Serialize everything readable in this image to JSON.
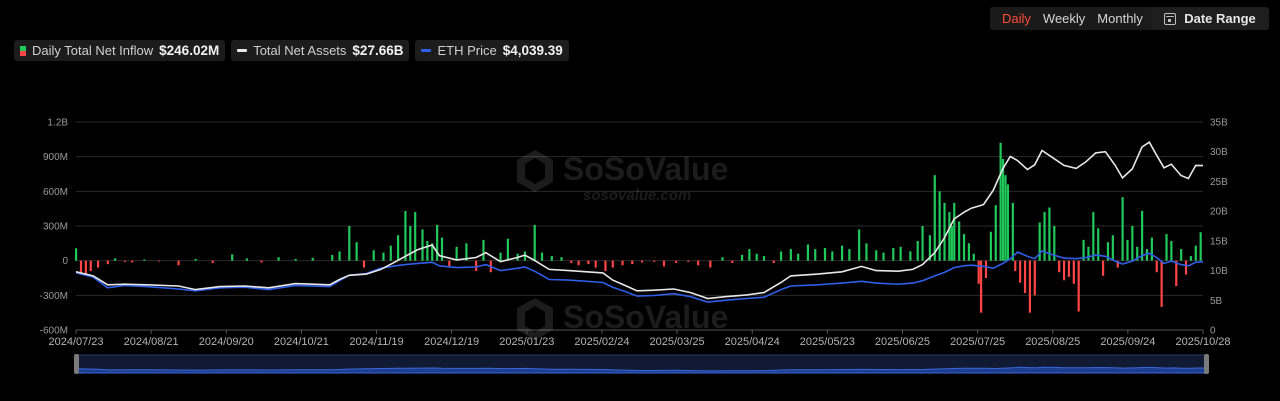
{
  "controls": {
    "periods": [
      {
        "label": "Daily",
        "active": true
      },
      {
        "label": "Weekly",
        "active": false
      },
      {
        "label": "Monthly",
        "active": false
      }
    ],
    "date_range_label": "Date Range"
  },
  "legend": {
    "inflow_label": "Daily Total Net Inflow",
    "inflow_value": "$246.02M",
    "assets_label": "Total Net Assets",
    "assets_value": "$27.66B",
    "price_label": "ETH Price",
    "price_value": "$4,039.39"
  },
  "watermark": {
    "name": "SoSoValue",
    "url": "sosovalue.com"
  },
  "colors": {
    "positive": "#21c85a",
    "negative": "#ff4545",
    "assets": "#e8e8e8",
    "price": "#2f5fe8"
  },
  "chart_data": {
    "type": "bar+line",
    "x_range": [
      "2024-07-23",
      "2025/10/28"
    ],
    "x_ticks": [
      "2024/07/23",
      "2024/08/21",
      "2024/09/20",
      "2024/10/21",
      "2024/11/19",
      "2024/12/19",
      "2025/01/23",
      "2025/02/24",
      "2025/03/25",
      "2025/04/24",
      "2025/05/23",
      "2025/06/25",
      "2025/07/25",
      "2025/08/25",
      "2025/09/24",
      "2025/10/28"
    ],
    "y_left": {
      "name": "Daily Total Net Inflow",
      "ticks": [
        "1.2B",
        "900M",
        "600M",
        "300M",
        "0",
        "-300M",
        "-600M"
      ],
      "range": [
        -600,
        1200
      ],
      "unit": "M USD"
    },
    "y_right": {
      "name": "Total Net Assets",
      "ticks": [
        "35B",
        "30B",
        "25B",
        "20B",
        "15B",
        "10B",
        "5B",
        "0"
      ],
      "range": [
        0,
        35
      ],
      "unit": "B USD"
    },
    "inflow_bars": [
      [
        "2024-07-23",
        107
      ],
      [
        "2024-07-25",
        -100
      ],
      [
        "2024-07-27",
        -120
      ],
      [
        "2024-07-29",
        -90
      ],
      [
        "2024-08-01",
        -60
      ],
      [
        "2024-08-05",
        -30
      ],
      [
        "2024-08-08",
        20
      ],
      [
        "2024-08-12",
        -10
      ],
      [
        "2024-08-15",
        -15
      ],
      [
        "2024-08-20",
        10
      ],
      [
        "2024-08-26",
        -5
      ],
      [
        "2024-09-03",
        -40
      ],
      [
        "2024-09-10",
        15
      ],
      [
        "2024-09-17",
        -20
      ],
      [
        "2024-09-25",
        55
      ],
      [
        "2024-10-01",
        20
      ],
      [
        "2024-10-07",
        -15
      ],
      [
        "2024-10-14",
        30
      ],
      [
        "2024-10-21",
        15
      ],
      [
        "2024-10-28",
        25
      ],
      [
        "2024-11-05",
        50
      ],
      [
        "2024-11-08",
        80
      ],
      [
        "2024-11-12",
        300
      ],
      [
        "2024-11-15",
        160
      ],
      [
        "2024-11-18",
        -60
      ],
      [
        "2024-11-22",
        90
      ],
      [
        "2024-11-26",
        70
      ],
      [
        "2024-11-29",
        130
      ],
      [
        "2024-12-02",
        220
      ],
      [
        "2024-12-05",
        430
      ],
      [
        "2024-12-07",
        300
      ],
      [
        "2024-12-09",
        420
      ],
      [
        "2024-12-12",
        270
      ],
      [
        "2024-12-14",
        170
      ],
      [
        "2024-12-16",
        150
      ],
      [
        "2024-12-18",
        310
      ],
      [
        "2024-12-20",
        200
      ],
      [
        "2024-12-23",
        -60
      ],
      [
        "2024-12-26",
        120
      ],
      [
        "2024-12-30",
        150
      ],
      [
        "2025-01-03",
        -90
      ],
      [
        "2025-01-06",
        180
      ],
      [
        "2025-01-09",
        -100
      ],
      [
        "2025-01-13",
        70
      ],
      [
        "2025-01-16",
        190
      ],
      [
        "2025-01-20",
        60
      ],
      [
        "2025-01-23",
        80
      ],
      [
        "2025-01-27",
        310
      ],
      [
        "2025-01-30",
        70
      ],
      [
        "2025-02-03",
        40
      ],
      [
        "2025-02-07",
        30
      ],
      [
        "2025-02-11",
        -20
      ],
      [
        "2025-02-14",
        -40
      ],
      [
        "2025-02-18",
        -30
      ],
      [
        "2025-02-21",
        -60
      ],
      [
        "2025-02-25",
        -90
      ],
      [
        "2025-02-28",
        -60
      ],
      [
        "2025-03-04",
        -40
      ],
      [
        "2025-03-08",
        -30
      ],
      [
        "2025-03-12",
        -15
      ],
      [
        "2025-03-17",
        -10
      ],
      [
        "2025-03-21",
        -50
      ],
      [
        "2025-03-26",
        -20
      ],
      [
        "2025-03-31",
        -10
      ],
      [
        "2025-04-04",
        -40
      ],
      [
        "2025-04-09",
        -60
      ],
      [
        "2025-04-14",
        30
      ],
      [
        "2025-04-18",
        -20
      ],
      [
        "2025-04-22",
        50
      ],
      [
        "2025-04-25",
        100
      ],
      [
        "2025-04-28",
        60
      ],
      [
        "2025-05-01",
        40
      ],
      [
        "2025-05-05",
        -20
      ],
      [
        "2025-05-08",
        80
      ],
      [
        "2025-05-12",
        100
      ],
      [
        "2025-05-15",
        60
      ],
      [
        "2025-05-19",
        140
      ],
      [
        "2025-05-22",
        100
      ],
      [
        "2025-05-26",
        110
      ],
      [
        "2025-05-29",
        80
      ],
      [
        "2025-06-02",
        130
      ],
      [
        "2025-06-05",
        100
      ],
      [
        "2025-06-09",
        270
      ],
      [
        "2025-06-12",
        150
      ],
      [
        "2025-06-16",
        90
      ],
      [
        "2025-06-19",
        70
      ],
      [
        "2025-06-23",
        110
      ],
      [
        "2025-06-26",
        120
      ],
      [
        "2025-06-30",
        80
      ],
      [
        "2025-07-03",
        170
      ],
      [
        "2025-07-05",
        300
      ],
      [
        "2025-07-08",
        220
      ],
      [
        "2025-07-10",
        740
      ],
      [
        "2025-07-12",
        600
      ],
      [
        "2025-07-14",
        500
      ],
      [
        "2025-07-16",
        420
      ],
      [
        "2025-07-17",
        300
      ],
      [
        "2025-07-18",
        500
      ],
      [
        "2025-07-20",
        340
      ],
      [
        "2025-07-22",
        230
      ],
      [
        "2025-07-24",
        150
      ],
      [
        "2025-07-26",
        60
      ],
      [
        "2025-07-28",
        -200
      ],
      [
        "2025-07-29",
        -450
      ],
      [
        "2025-07-31",
        -150
      ],
      [
        "2025-08-02",
        250
      ],
      [
        "2025-08-04",
        480
      ],
      [
        "2025-08-06",
        1020
      ],
      [
        "2025-08-07",
        880
      ],
      [
        "2025-08-08",
        740
      ],
      [
        "2025-08-09",
        660
      ],
      [
        "2025-08-11",
        500
      ],
      [
        "2025-08-12",
        -90
      ],
      [
        "2025-08-14",
        -190
      ],
      [
        "2025-08-16",
        -280
      ],
      [
        "2025-08-18",
        -450
      ],
      [
        "2025-08-20",
        -300
      ],
      [
        "2025-08-22",
        330
      ],
      [
        "2025-08-24",
        420
      ],
      [
        "2025-08-26",
        460
      ],
      [
        "2025-08-28",
        300
      ],
      [
        "2025-08-30",
        -100
      ],
      [
        "2025-09-01",
        -170
      ],
      [
        "2025-09-03",
        -140
      ],
      [
        "2025-09-05",
        -200
      ],
      [
        "2025-09-07",
        -440
      ],
      [
        "2025-09-09",
        180
      ],
      [
        "2025-09-11",
        120
      ],
      [
        "2025-09-13",
        420
      ],
      [
        "2025-09-15",
        280
      ],
      [
        "2025-09-17",
        -130
      ],
      [
        "2025-09-19",
        160
      ],
      [
        "2025-09-21",
        220
      ],
      [
        "2025-09-23",
        -60
      ],
      [
        "2025-09-25",
        550
      ],
      [
        "2025-09-27",
        180
      ],
      [
        "2025-09-29",
        300
      ],
      [
        "2025-10-01",
        120
      ],
      [
        "2025-10-03",
        430
      ],
      [
        "2025-10-05",
        100
      ],
      [
        "2025-10-07",
        200
      ],
      [
        "2025-10-09",
        -100
      ],
      [
        "2025-10-11",
        -400
      ],
      [
        "2025-10-13",
        230
      ],
      [
        "2025-10-15",
        170
      ],
      [
        "2025-10-17",
        -220
      ],
      [
        "2025-10-19",
        100
      ],
      [
        "2025-10-21",
        -120
      ],
      [
        "2025-10-23",
        40
      ],
      [
        "2025-10-25",
        130
      ],
      [
        "2025-10-27",
        246
      ]
    ],
    "assets_line": [
      [
        "2024-07-23",
        9.8
      ],
      [
        "2024-07-30",
        9.1
      ],
      [
        "2024-08-05",
        7.6
      ],
      [
        "2024-08-12",
        7.7
      ],
      [
        "2024-08-21",
        7.6
      ],
      [
        "2024-09-03",
        7.4
      ],
      [
        "2024-09-10",
        6.8
      ],
      [
        "2024-09-20",
        7.3
      ],
      [
        "2024-09-30",
        7.4
      ],
      [
        "2024-10-10",
        7.1
      ],
      [
        "2024-10-21",
        7.8
      ],
      [
        "2024-11-04",
        7.6
      ],
      [
        "2024-11-08",
        8.5
      ],
      [
        "2024-11-12",
        9.2
      ],
      [
        "2024-11-19",
        9.4
      ],
      [
        "2024-11-25",
        10.2
      ],
      [
        "2024-12-01",
        11.5
      ],
      [
        "2024-12-05",
        12.4
      ],
      [
        "2024-12-10",
        13.5
      ],
      [
        "2024-12-16",
        14.3
      ],
      [
        "2024-12-19",
        12.5
      ],
      [
        "2024-12-26",
        11.8
      ],
      [
        "2025-01-03",
        12.2
      ],
      [
        "2025-01-07",
        13.0
      ],
      [
        "2025-01-13",
        11.5
      ],
      [
        "2025-01-20",
        12.2
      ],
      [
        "2025-01-23",
        12.6
      ],
      [
        "2025-01-27",
        11.7
      ],
      [
        "2025-02-02",
        10.2
      ],
      [
        "2025-02-10",
        10.0
      ],
      [
        "2025-02-24",
        9.6
      ],
      [
        "2025-02-28",
        8.4
      ],
      [
        "2025-03-05",
        7.5
      ],
      [
        "2025-03-10",
        6.6
      ],
      [
        "2025-03-17",
        6.7
      ],
      [
        "2025-03-25",
        6.9
      ],
      [
        "2025-04-01",
        6.3
      ],
      [
        "2025-04-08",
        5.3
      ],
      [
        "2025-04-15",
        5.6
      ],
      [
        "2025-04-24",
        5.9
      ],
      [
        "2025-05-01",
        6.3
      ],
      [
        "2025-05-08",
        8.0
      ],
      [
        "2025-05-12",
        9.1
      ],
      [
        "2025-05-23",
        9.4
      ],
      [
        "2025-06-02",
        9.8
      ],
      [
        "2025-06-10",
        10.7
      ],
      [
        "2025-06-16",
        10.0
      ],
      [
        "2025-06-25",
        9.9
      ],
      [
        "2025-07-01",
        10.2
      ],
      [
        "2025-07-05",
        11.0
      ],
      [
        "2025-07-10",
        13.0
      ],
      [
        "2025-07-14",
        15.5
      ],
      [
        "2025-07-18",
        18.7
      ],
      [
        "2025-07-22",
        19.8
      ],
      [
        "2025-07-25",
        20.5
      ],
      [
        "2025-07-30",
        21.1
      ],
      [
        "2025-08-03",
        23.5
      ],
      [
        "2025-08-07",
        27.2
      ],
      [
        "2025-08-10",
        29.2
      ],
      [
        "2025-08-13",
        28.5
      ],
      [
        "2025-08-17",
        27.0
      ],
      [
        "2025-08-20",
        27.8
      ],
      [
        "2025-08-23",
        30.2
      ],
      [
        "2025-08-27",
        29.1
      ],
      [
        "2025-09-01",
        27.7
      ],
      [
        "2025-09-06",
        27.2
      ],
      [
        "2025-09-10",
        28.3
      ],
      [
        "2025-09-14",
        29.8
      ],
      [
        "2025-09-18",
        30.0
      ],
      [
        "2025-09-22",
        27.7
      ],
      [
        "2025-09-25",
        25.6
      ],
      [
        "2025-09-29",
        27.1
      ],
      [
        "2025-10-03",
        30.8
      ],
      [
        "2025-10-06",
        31.6
      ],
      [
        "2025-10-09",
        29.4
      ],
      [
        "2025-10-12",
        27.3
      ],
      [
        "2025-10-15",
        27.9
      ],
      [
        "2025-10-19",
        26.0
      ],
      [
        "2025-10-22",
        25.5
      ],
      [
        "2025-10-25",
        27.7
      ],
      [
        "2025-10-28",
        27.66
      ]
    ],
    "price_line_axis_units": [
      [
        "2024-07-23",
        9.6
      ],
      [
        "2024-07-30",
        8.9
      ],
      [
        "2024-08-05",
        7.1
      ],
      [
        "2024-08-12",
        7.5
      ],
      [
        "2024-08-21",
        7.3
      ],
      [
        "2024-09-03",
        6.9
      ],
      [
        "2024-09-10",
        6.6
      ],
      [
        "2024-09-20",
        7.1
      ],
      [
        "2024-09-30",
        7.2
      ],
      [
        "2024-10-10",
        6.8
      ],
      [
        "2024-10-21",
        7.5
      ],
      [
        "2024-11-04",
        7.3
      ],
      [
        "2024-11-08",
        8.3
      ],
      [
        "2024-11-12",
        9.2
      ],
      [
        "2024-11-19",
        9.5
      ],
      [
        "2024-11-25",
        10.4
      ],
      [
        "2024-12-01",
        10.8
      ],
      [
        "2024-12-05",
        11.0
      ],
      [
        "2024-12-10",
        11.2
      ],
      [
        "2024-12-16",
        11.4
      ],
      [
        "2024-12-19",
        10.8
      ],
      [
        "2024-12-26",
        10.5
      ],
      [
        "2025-01-03",
        10.6
      ],
      [
        "2025-01-07",
        11.0
      ],
      [
        "2025-01-13",
        10.0
      ],
      [
        "2025-01-20",
        10.4
      ],
      [
        "2025-01-23",
        10.6
      ],
      [
        "2025-01-27",
        9.9
      ],
      [
        "2025-02-02",
        8.5
      ],
      [
        "2025-02-10",
        8.4
      ],
      [
        "2025-02-24",
        8.0
      ],
      [
        "2025-02-28",
        7.2
      ],
      [
        "2025-03-05",
        6.5
      ],
      [
        "2025-03-10",
        5.7
      ],
      [
        "2025-03-17",
        5.8
      ],
      [
        "2025-03-25",
        6.1
      ],
      [
        "2025-04-01",
        5.6
      ],
      [
        "2025-04-08",
        4.7
      ],
      [
        "2025-04-15",
        5.0
      ],
      [
        "2025-04-24",
        5.3
      ],
      [
        "2025-05-01",
        5.5
      ],
      [
        "2025-05-08",
        6.8
      ],
      [
        "2025-05-12",
        7.4
      ],
      [
        "2025-05-23",
        7.6
      ],
      [
        "2025-06-02",
        7.9
      ],
      [
        "2025-06-10",
        8.2
      ],
      [
        "2025-06-16",
        7.9
      ],
      [
        "2025-06-25",
        7.7
      ],
      [
        "2025-07-01",
        7.9
      ],
      [
        "2025-07-05",
        8.3
      ],
      [
        "2025-07-10",
        9.1
      ],
      [
        "2025-07-14",
        9.7
      ],
      [
        "2025-07-18",
        10.5
      ],
      [
        "2025-07-22",
        10.8
      ],
      [
        "2025-07-25",
        10.9
      ],
      [
        "2025-07-30",
        10.7
      ],
      [
        "2025-08-03",
        10.4
      ],
      [
        "2025-08-07",
        11.2
      ],
      [
        "2025-08-10",
        12.0
      ],
      [
        "2025-08-13",
        13.1
      ],
      [
        "2025-08-17",
        12.4
      ],
      [
        "2025-08-20",
        12.0
      ],
      [
        "2025-08-23",
        13.3
      ],
      [
        "2025-08-27",
        12.7
      ],
      [
        "2025-09-01",
        12.1
      ],
      [
        "2025-09-06",
        12.0
      ],
      [
        "2025-09-10",
        12.2
      ],
      [
        "2025-09-14",
        12.6
      ],
      [
        "2025-09-18",
        12.4
      ],
      [
        "2025-09-22",
        11.6
      ],
      [
        "2025-09-25",
        11.1
      ],
      [
        "2025-09-29",
        11.6
      ],
      [
        "2025-10-03",
        12.5
      ],
      [
        "2025-10-06",
        12.9
      ],
      [
        "2025-10-09",
        12.2
      ],
      [
        "2025-10-12",
        11.2
      ],
      [
        "2025-10-15",
        11.6
      ],
      [
        "2025-10-19",
        11.0
      ],
      [
        "2025-10-22",
        10.8
      ],
      [
        "2025-10-25",
        11.4
      ],
      [
        "2025-10-28",
        11.5
      ]
    ]
  }
}
